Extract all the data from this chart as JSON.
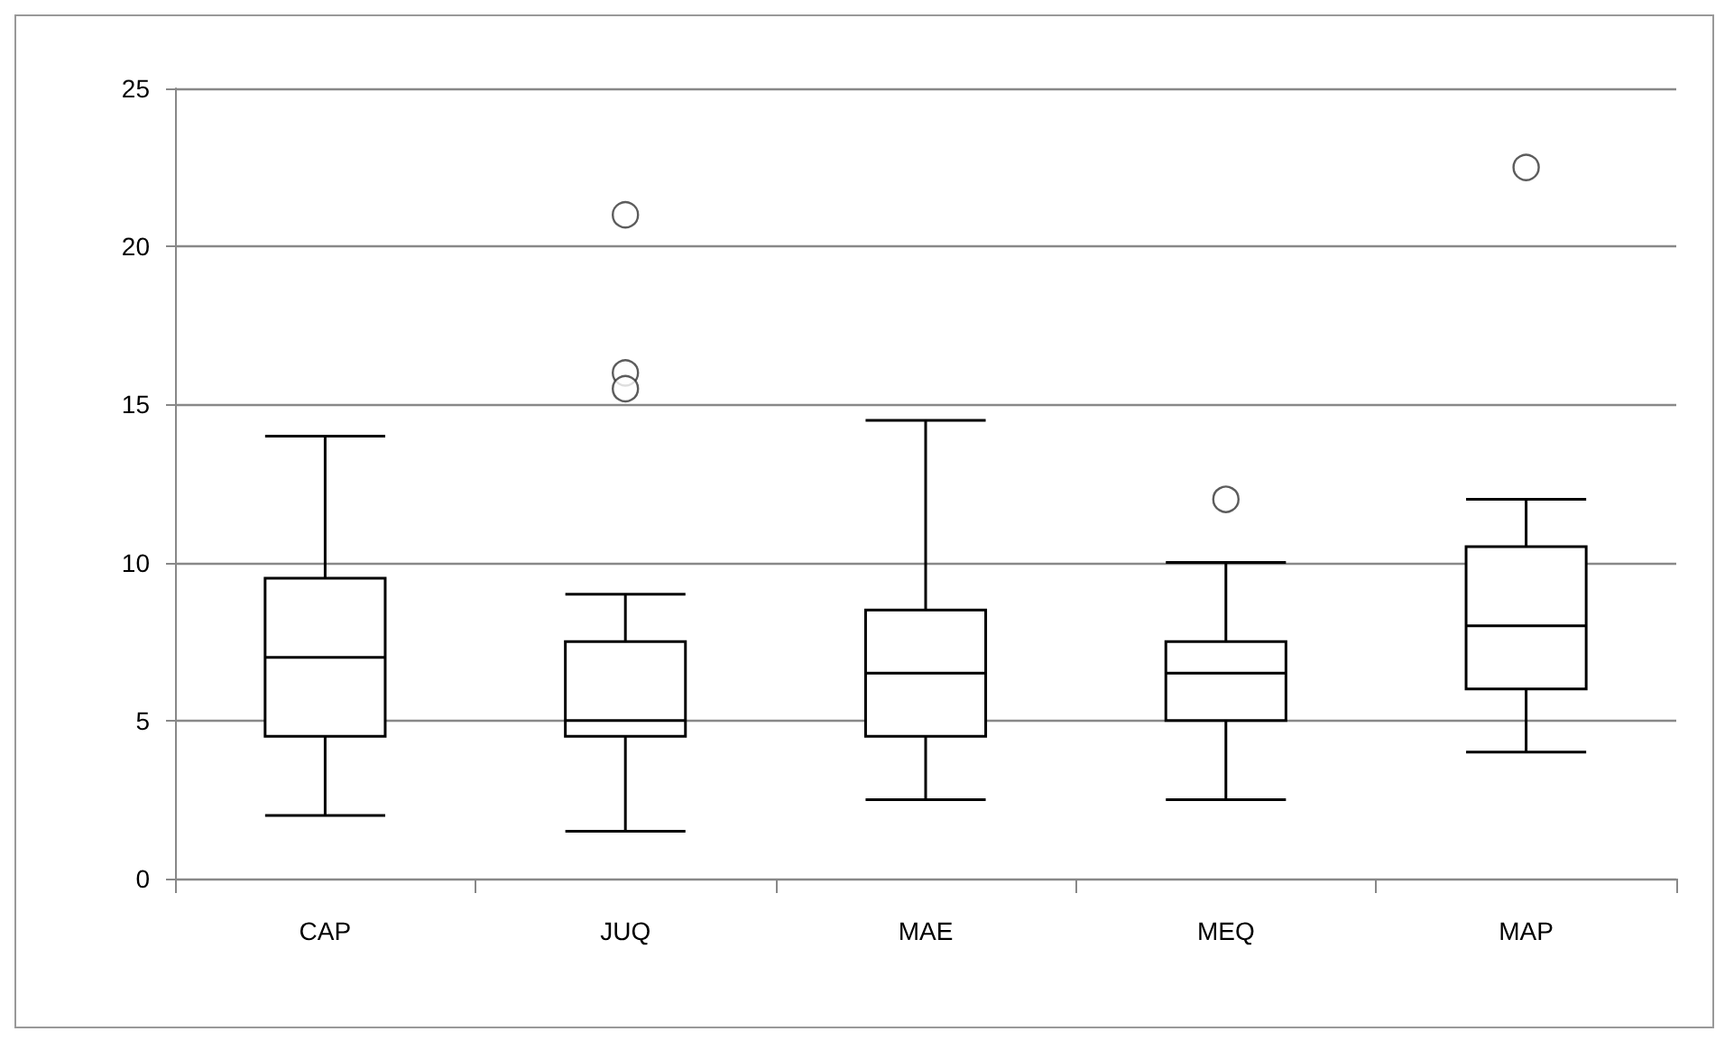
{
  "chart_data": {
    "type": "box",
    "categories": [
      "CAP",
      "JUQ",
      "MAE",
      "MEQ",
      "MAP"
    ],
    "boxes": [
      {
        "low": 2,
        "q1": 4.5,
        "median": 7,
        "q3": 9.5,
        "high": 14
      },
      {
        "low": 1.5,
        "q1": 4.5,
        "median": 5,
        "q3": 7.5,
        "high": 9,
        "outliers": [
          21,
          16,
          15.5
        ]
      },
      {
        "low": 2.5,
        "q1": 4.5,
        "median": 6.5,
        "q3": 8.5,
        "high": 14.5
      },
      {
        "low": 2.5,
        "q1": 5,
        "median": 6.5,
        "q3": 7.5,
        "high": 10,
        "outliers": [
          12
        ]
      },
      {
        "low": 4,
        "q1": 6,
        "median": 8,
        "q3": 10.5,
        "high": 12,
        "outliers": [
          22.5
        ]
      }
    ],
    "color": "#000000",
    "ylim": [
      0,
      25
    ],
    "yticks": [
      0,
      5,
      10,
      15,
      20,
      25
    ],
    "grid": "y"
  }
}
